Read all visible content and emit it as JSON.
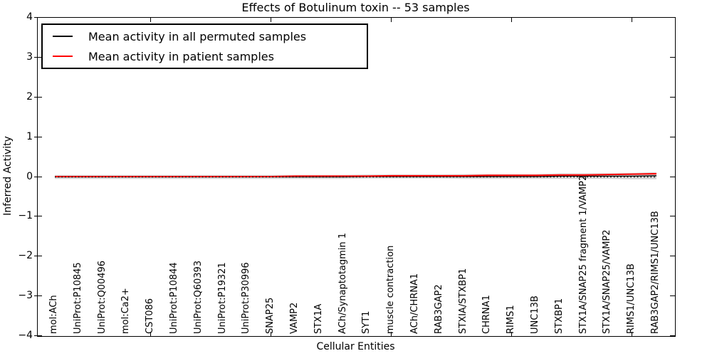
{
  "figure": {
    "title": "Effects of Botulinum toxin -- 53 samples"
  },
  "axes": {
    "xlabel": "Cellular Entities",
    "ylabel": "Inferred Activity",
    "ytick_labels": [
      "4",
      "3",
      "2",
      "1",
      "0",
      "−1",
      "−2",
      "−3",
      "−4"
    ]
  },
  "legend": {
    "items": [
      {
        "label": "Mean activity in all permuted samples",
        "color": "#000000"
      },
      {
        "label": "Mean activity in patient samples",
        "color": "#ff0000"
      }
    ]
  },
  "chart_data": {
    "type": "line",
    "title": "Effects of Botulinum toxin -- 53 samples",
    "xlabel": "Cellular Entities",
    "ylabel": "Inferred Activity",
    "ylim": [
      -4,
      4
    ],
    "yticks": [
      4,
      3,
      2,
      1,
      0,
      -1,
      -2,
      -3,
      -4
    ],
    "grid": false,
    "legend_position": "upper left",
    "x_major_tick_category_indices": [
      4,
      9,
      14,
      19,
      24
    ],
    "categories": [
      "mol:ACh",
      "UniProt:P10845",
      "UniProt:Q00496",
      "mol:Ca2+",
      "CST086",
      "UniProt:P10844",
      "UniProt:Q60393",
      "UniProt:P19321",
      "UniProt:P30996",
      "SNAP25",
      "VAMP2",
      "STX1A",
      "ACh/Synaptotagmin 1",
      "SYT1",
      "muscle contraction",
      "ACh/CHRNA1",
      "RAB3GAP2",
      "STXIA/STXBP1",
      "CHRNA1",
      "RIMS1",
      "UNC13B",
      "STXBP1",
      "STX1A/SNAP25 fragment 1/VAMP2",
      "STX1A/SNAP25/VAMP2",
      "RIMS1/UNC13B",
      "RAB3GAP2/RIMS1/UNC13B"
    ],
    "series": [
      {
        "name": "Mean activity in all permuted samples",
        "color": "#000000",
        "style": "solid",
        "values": [
          0,
          0,
          0,
          0,
          0,
          0,
          0,
          0,
          0,
          0,
          0,
          0,
          0,
          0.01,
          0.01,
          0.01,
          0.01,
          0.01,
          0.01,
          0.01,
          0.01,
          0.02,
          0.02,
          0.02,
          0.02,
          0.03
        ]
      },
      {
        "name": "Mean activity in patient samples",
        "color": "#ff0000",
        "style": "solid",
        "values": [
          0.01,
          0.01,
          0.01,
          0.01,
          0.01,
          0.01,
          0.01,
          0.01,
          0.01,
          0.01,
          0.02,
          0.02,
          0.02,
          0.02,
          0.03,
          0.03,
          0.03,
          0.03,
          0.04,
          0.04,
          0.04,
          0.05,
          0.05,
          0.06,
          0.07,
          0.08
        ]
      }
    ],
    "uncertainty_band": {
      "around_series": "Mean activity in all permuted samples",
      "color": "#c8c8c8",
      "halfwidth": [
        0.05,
        0.05,
        0.05,
        0.05,
        0.05,
        0.05,
        0.05,
        0.05,
        0.05,
        0.05,
        0.05,
        0.05,
        0.05,
        0.05,
        0.05,
        0.05,
        0.05,
        0.06,
        0.06,
        0.06,
        0.06,
        0.07,
        0.07,
        0.07,
        0.08,
        0.09
      ]
    },
    "zero_reference_line": {
      "y": 0,
      "style": "dotted",
      "color": "#000000"
    }
  }
}
